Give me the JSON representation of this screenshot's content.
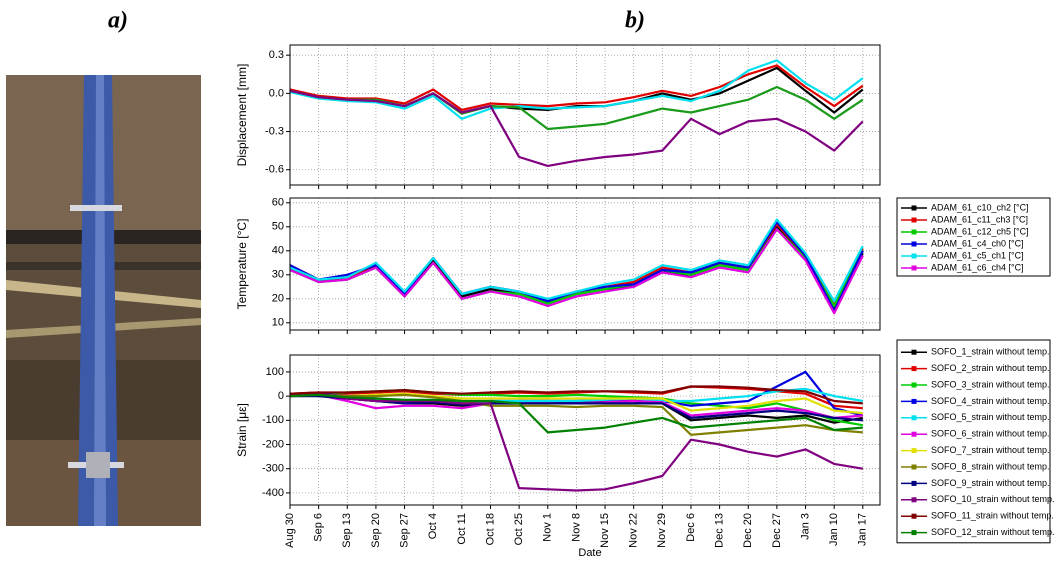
{
  "labels": {
    "a": "a)",
    "b": "b)"
  },
  "x_axis": {
    "label": "Date",
    "categories": [
      "Aug 30",
      "Sep 6",
      "Sep 13",
      "Sep 20",
      "Sep 27",
      "Oct 4",
      "Oct 11",
      "Oct 18",
      "Oct 25",
      "Nov 1",
      "Nov 8",
      "Nov 15",
      "Nov 22",
      "Nov 29",
      "Dec 6",
      "Dec 13",
      "Dec 20",
      "Dec 27",
      "Jan 3",
      "Jan 10",
      "Jan 17"
    ]
  },
  "chart_data": [
    {
      "type": "line",
      "y_label": "Displacement [mm]",
      "ylim": [
        -0.72,
        0.38
      ],
      "grid": true,
      "yticks": [
        -0.6,
        -0.3,
        {
          "value": 0,
          "label": "0.0"
        },
        0.3
      ],
      "series": [
        {
          "color": "#000000",
          "values": [
            0.02,
            -0.03,
            -0.05,
            -0.06,
            -0.1,
            0.0,
            -0.15,
            -0.1,
            -0.12,
            -0.13,
            -0.1,
            -0.1,
            -0.06,
            0.0,
            -0.05,
            0.0,
            0.1,
            0.2,
            0.02,
            -0.15,
            0.03
          ]
        },
        {
          "color": "#e00000",
          "values": [
            0.03,
            -0.02,
            -0.04,
            -0.04,
            -0.08,
            0.03,
            -0.13,
            -0.08,
            -0.09,
            -0.1,
            -0.08,
            -0.07,
            -0.03,
            0.02,
            -0.02,
            0.05,
            0.15,
            0.22,
            0.05,
            -0.1,
            0.06
          ]
        },
        {
          "color": "#00e0f0",
          "values": [
            0.01,
            -0.04,
            -0.06,
            -0.07,
            -0.12,
            -0.02,
            -0.2,
            -0.12,
            -0.1,
            -0.12,
            -0.11,
            -0.1,
            -0.06,
            -0.02,
            -0.06,
            0.02,
            0.18,
            0.26,
            0.08,
            -0.05,
            0.12
          ]
        },
        {
          "color": "#1a9a1a",
          "values": [
            0.02,
            -0.03,
            -0.05,
            -0.05,
            -0.1,
            0.0,
            -0.16,
            -0.1,
            -0.11,
            -0.28,
            -0.26,
            -0.24,
            -0.18,
            -0.12,
            -0.15,
            -0.1,
            -0.05,
            0.05,
            -0.05,
            -0.2,
            -0.05
          ]
        },
        {
          "color": "#800080",
          "values": [
            0.02,
            -0.03,
            -0.05,
            -0.06,
            -0.1,
            0.0,
            -0.15,
            -0.1,
            -0.5,
            -0.57,
            -0.53,
            -0.5,
            -0.48,
            -0.45,
            -0.2,
            -0.32,
            -0.22,
            -0.2,
            -0.3,
            -0.45,
            -0.22
          ]
        }
      ]
    },
    {
      "type": "line",
      "y_label": "Temperature [°C]",
      "ylim": [
        7,
        62
      ],
      "grid": true,
      "yticks": [
        10,
        20,
        30,
        40,
        50,
        60
      ],
      "legend": "outside-right",
      "series": [
        {
          "name": "ADAM_61_c10_ch2 [°C]",
          "color": "#000000",
          "values": [
            33,
            27,
            29,
            33,
            21,
            36,
            21,
            24,
            22,
            18,
            22,
            24,
            25,
            31,
            30,
            34,
            32,
            50,
            37,
            16,
            39
          ]
        },
        {
          "name": "ADAM_61_c11_ch3 [°C]",
          "color": "#e00000",
          "values": [
            34,
            28,
            29,
            34,
            22,
            37,
            22,
            25,
            23,
            19,
            23,
            25,
            27,
            33,
            31,
            35,
            33,
            51,
            38,
            18,
            41
          ]
        },
        {
          "name": "ADAM_61_c12_ch5 [°C]",
          "color": "#00cc00",
          "values": [
            32,
            27,
            28,
            33,
            21,
            35,
            20,
            23,
            22,
            18,
            22,
            24,
            26,
            32,
            30,
            34,
            32,
            49,
            37,
            17,
            40
          ]
        },
        {
          "name": "ADAM_61_c4_ch0 [°C]",
          "color": "#0000e0",
          "values": [
            34,
            28,
            30,
            34,
            22,
            37,
            22,
            25,
            23,
            19,
            23,
            25,
            26,
            32,
            31,
            35,
            33,
            52,
            38,
            15,
            40
          ]
        },
        {
          "name": "ADAM_61_c5_ch1 [°C]",
          "color": "#00e0f0",
          "values": [
            33,
            28,
            29,
            35,
            23,
            37,
            22,
            25,
            23,
            20,
            23,
            26,
            28,
            34,
            32,
            36,
            34,
            53,
            39,
            19,
            42
          ]
        },
        {
          "name": "ADAM_61_c6_ch4 [°C]",
          "color": "#e000e0",
          "values": [
            32,
            27,
            28,
            33,
            21,
            35,
            20,
            23,
            21,
            17,
            21,
            23,
            25,
            31,
            29,
            33,
            31,
            49,
            36,
            14,
            38
          ]
        }
      ]
    },
    {
      "type": "line",
      "y_label": "Strain [με]",
      "ylim": [
        -450,
        170
      ],
      "grid": true,
      "yticks": [
        -400,
        -300,
        -200,
        -100,
        0,
        100
      ],
      "legend": "outside-right",
      "series": [
        {
          "name": "SOFO_1_strain without temp.",
          "color": "#000000",
          "values": [
            5,
            10,
            -10,
            -20,
            -30,
            -30,
            -40,
            -30,
            -20,
            -20,
            -25,
            -20,
            -20,
            -30,
            -100,
            -90,
            -80,
            -90,
            -80,
            -110,
            -90
          ]
        },
        {
          "name": "SOFO_2_strain without temp.",
          "color": "#e00000",
          "values": [
            10,
            15,
            10,
            15,
            20,
            10,
            5,
            10,
            15,
            10,
            15,
            20,
            15,
            10,
            40,
            35,
            30,
            20,
            10,
            -40,
            -50
          ]
        },
        {
          "name": "SOFO_3_strain without temp.",
          "color": "#00cc00",
          "values": [
            5,
            10,
            15,
            20,
            25,
            15,
            5,
            5,
            0,
            0,
            5,
            0,
            -5,
            -10,
            -30,
            -40,
            -50,
            -30,
            -60,
            -100,
            -120
          ]
        },
        {
          "name": "SOFO_4_strain without temp.",
          "color": "#0000e0",
          "values": [
            0,
            10,
            0,
            -10,
            -20,
            -20,
            -30,
            -20,
            -20,
            -20,
            -20,
            -15,
            -15,
            -20,
            -40,
            -30,
            -20,
            40,
            100,
            -50,
            -80
          ]
        },
        {
          "name": "SOFO_5_strain without temp.",
          "color": "#00e0f0",
          "values": [
            0,
            5,
            -5,
            -10,
            -20,
            -20,
            -30,
            -20,
            -20,
            -20,
            -20,
            -15,
            -10,
            -20,
            -20,
            -10,
            0,
            20,
            30,
            0,
            -20
          ]
        },
        {
          "name": "SOFO_6_strain without temp.",
          "color": "#e000e0",
          "values": [
            0,
            5,
            -20,
            -50,
            -40,
            -40,
            -50,
            -30,
            -30,
            -30,
            -30,
            -25,
            -20,
            -25,
            -80,
            -70,
            -60,
            -50,
            -60,
            -90,
            -80
          ]
        },
        {
          "name": "SOFO_7_strain without temp.",
          "color": "#e0e000",
          "values": [
            0,
            5,
            0,
            5,
            10,
            0,
            -10,
            -10,
            -10,
            -10,
            -10,
            -10,
            -10,
            -10,
            -60,
            -50,
            -40,
            -20,
            -10,
            -60,
            -70
          ]
        },
        {
          "name": "SOFO_8_strain without temp.",
          "color": "#808000",
          "values": [
            0,
            5,
            0,
            0,
            5,
            -5,
            -20,
            -40,
            -40,
            -40,
            -45,
            -40,
            -40,
            -45,
            -160,
            -150,
            -140,
            -130,
            -120,
            -140,
            -150
          ]
        },
        {
          "name": "SOFO_9_strain without temp.",
          "color": "#000080",
          "values": [
            0,
            0,
            -10,
            -20,
            -30,
            -25,
            -35,
            -30,
            -30,
            -30,
            -30,
            -30,
            -30,
            -30,
            -90,
            -80,
            -70,
            -60,
            -70,
            -90,
            -100
          ]
        },
        {
          "name": "SOFO_10_strain without temp.",
          "color": "#800080",
          "values": [
            5,
            10,
            -10,
            -20,
            -20,
            -20,
            -30,
            -30,
            -380,
            -385,
            -390,
            -385,
            -360,
            -330,
            -180,
            -200,
            -230,
            -250,
            -220,
            -280,
            -300
          ]
        },
        {
          "name": "SOFO_11_strain without temp.",
          "color": "#800000",
          "values": [
            10,
            15,
            15,
            20,
            25,
            15,
            10,
            15,
            20,
            15,
            20,
            20,
            20,
            15,
            40,
            40,
            35,
            25,
            20,
            -20,
            -30
          ]
        },
        {
          "name": "SOFO_12_strain without temp.",
          "color": "#008000",
          "values": [
            0,
            5,
            -5,
            -10,
            -15,
            -15,
            -20,
            -20,
            -30,
            -150,
            -140,
            -130,
            -110,
            -90,
            -130,
            -120,
            -110,
            -100,
            -90,
            -140,
            -130
          ]
        }
      ]
    }
  ]
}
